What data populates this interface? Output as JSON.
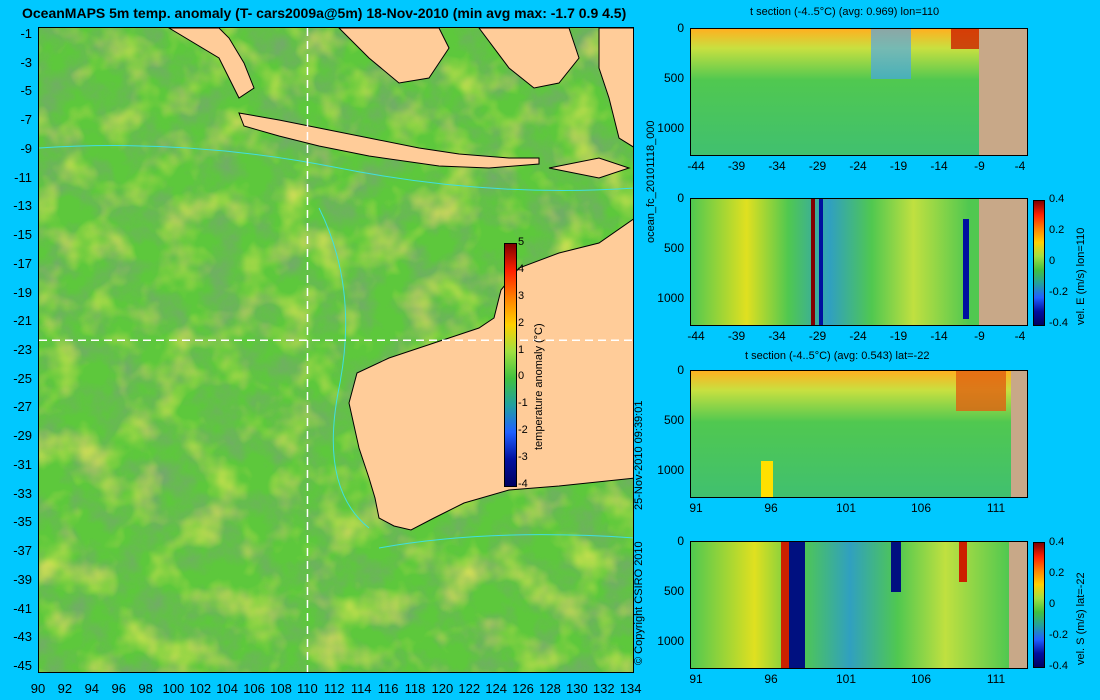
{
  "main_map": {
    "title": "OceanMAPS 5m temp. anomaly (T- cars2009a@5m) 18-Nov-2010 (min avg max: -1.7 0.9 4.5)",
    "lon_ticks": [
      "90",
      "92",
      "94",
      "96",
      "98",
      "100",
      "102",
      "104",
      "106",
      "108",
      "110",
      "112",
      "114",
      "116",
      "118",
      "120",
      "122",
      "124",
      "126",
      "128",
      "130",
      "132",
      "134"
    ],
    "lat_ticks": [
      "-1",
      "-3",
      "-5",
      "-7",
      "-9",
      "-11",
      "-13",
      "-15",
      "-17",
      "-19",
      "-21",
      "-23",
      "-25",
      "-27",
      "-29",
      "-31",
      "-33",
      "-35",
      "-37",
      "-39",
      "-41",
      "-43",
      "-45"
    ],
    "crosshair": {
      "lon": 110,
      "lat": -22
    },
    "colorbar": {
      "label": "temperature anomaly (°C)",
      "ticks": [
        "5",
        "4",
        "3",
        "2",
        "1",
        "0",
        "-1",
        "-2",
        "-3",
        "-4"
      ],
      "range": [
        -4,
        5
      ]
    }
  },
  "side_labels": {
    "left_top": "ocean_fc_20101118_000",
    "left_bottom_date": "25-Nov-2010 09:39:01",
    "left_bottom_copyright": "© Copyright CSIRO 2010"
  },
  "sections": [
    {
      "title": "t section (-4..5°C) (avg: 0.969) lon=110",
      "x_ticks": [
        "-44",
        "-39",
        "-34",
        "-29",
        "-24",
        "-19",
        "-14",
        "-9",
        "-4"
      ],
      "y_ticks": [
        "0",
        "500",
        "1000"
      ],
      "colorbar": null
    },
    {
      "title": "",
      "x_ticks": [
        "-44",
        "-39",
        "-34",
        "-29",
        "-24",
        "-19",
        "-14",
        "-9",
        "-4"
      ],
      "y_ticks": [
        "0",
        "500",
        "1000"
      ],
      "colorbar": {
        "label": "vel. E (m/s) lon=110",
        "ticks": [
          "0.4",
          "0.2",
          "0",
          "-0.2",
          "-0.4"
        ]
      }
    },
    {
      "title": "t section (-4..5°C) (avg: 0.543) lat=-22",
      "x_ticks": [
        "91",
        "96",
        "101",
        "106",
        "111"
      ],
      "y_ticks": [
        "0",
        "500",
        "1000"
      ],
      "colorbar": null
    },
    {
      "title": "",
      "x_ticks": [
        "91",
        "96",
        "101",
        "106",
        "111"
      ],
      "y_ticks": [
        "0",
        "500",
        "1000"
      ],
      "colorbar": {
        "label": "vel. S (m/s) lat=-22",
        "ticks": [
          "0.4",
          "0.2",
          "0",
          "-0.2",
          "-0.4"
        ]
      }
    }
  ],
  "colors": {
    "background": "#00c8ff",
    "land": "#ffcc99",
    "section_land": "#c8a888",
    "anomaly_mid": "#5dc83c",
    "contour": "#40e0e0"
  }
}
